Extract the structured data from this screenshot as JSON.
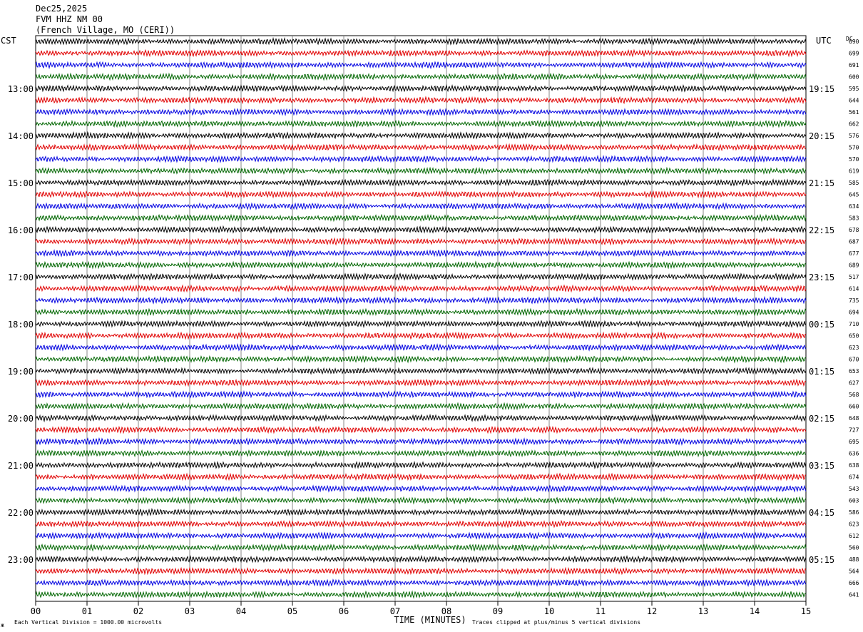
{
  "header": {
    "date": "Dec25,2025",
    "station": "FVM HHZ NM 00",
    "location": "(French Village, MO (CERI))"
  },
  "left_zone": "CST",
  "right_zone": "UTC",
  "dc_label": "DC",
  "chart_data": {
    "type": "line",
    "title": "",
    "xlabel": "TIME (MINUTES)",
    "x_ticks": [
      "00",
      "01",
      "02",
      "03",
      "04",
      "05",
      "06",
      "07",
      "08",
      "09",
      "10",
      "11",
      "12",
      "13",
      "14",
      "15"
    ],
    "xlim": [
      0,
      15
    ],
    "left_hour_labels": [
      "13:00",
      "14:00",
      "15:00",
      "16:00",
      "17:00",
      "18:00",
      "19:00",
      "20:00",
      "21:00",
      "22:00",
      "23:00"
    ],
    "right_hour_labels": [
      "19:15",
      "20:15",
      "21:15",
      "22:15",
      "23:15",
      "00:15",
      "01:15",
      "02:15",
      "03:15",
      "04:15",
      "05:15"
    ],
    "hour_label_first_trace": 4,
    "trace_colors": [
      "#000000",
      "#e00000",
      "#0000e0",
      "#006600"
    ],
    "dc_offsets": [
      "690",
      "699",
      "691",
      "600",
      "595",
      "644",
      "561",
      "662",
      "576",
      "570",
      "570",
      "619",
      "585",
      "645",
      "634",
      "583",
      "678",
      "687",
      "677",
      "689",
      "517",
      "614",
      "735",
      "694",
      "710",
      "650",
      "623",
      "670",
      "653",
      "627",
      "568",
      "660",
      "648",
      "727",
      "695",
      "636",
      "638",
      "674",
      "543",
      "603",
      "586",
      "623",
      "612",
      "560",
      "488",
      "564",
      "666",
      "641"
    ],
    "clip_divisions": 5
  },
  "footer": {
    "scale_note": "Each Vertical Division = 1000.00 microvolts",
    "clip_note": "Traces clipped at plus/minus 5 vertical divisions",
    "corner_mark": "ж"
  }
}
